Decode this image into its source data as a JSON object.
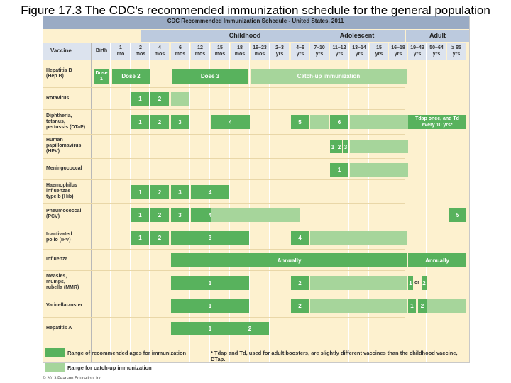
{
  "slide_title": "Figure 17.3 The CDC's recommended immunization schedule for the general population",
  "chart_title": "CDC Recommended Immunization Schedule - United States, 2011",
  "groups": {
    "childhood": "Childhood",
    "adolescent": "Adolescent",
    "adult": "Adult"
  },
  "vaccine_header": "Vaccine",
  "columns": [
    {
      "top": "Birth",
      "bottom": ""
    },
    {
      "top": "1",
      "bottom": "mo"
    },
    {
      "top": "2",
      "bottom": "mos"
    },
    {
      "top": "4",
      "bottom": "mos"
    },
    {
      "top": "6",
      "bottom": "mos"
    },
    {
      "top": "12",
      "bottom": "mos"
    },
    {
      "top": "15",
      "bottom": "mos"
    },
    {
      "top": "18",
      "bottom": "mos"
    },
    {
      "top": "19–23",
      "bottom": "mos"
    },
    {
      "top": "2–3",
      "bottom": "yrs"
    },
    {
      "top": "4–6",
      "bottom": "yrs"
    },
    {
      "top": "7–10",
      "bottom": "yrs"
    },
    {
      "top": "11–12",
      "bottom": "yrs"
    },
    {
      "top": "13–14",
      "bottom": "yrs"
    },
    {
      "top": "15",
      "bottom": "yrs"
    },
    {
      "top": "16–18",
      "bottom": "yrs"
    },
    {
      "top": "19–49",
      "bottom": "yrs"
    },
    {
      "top": "50–64",
      "bottom": "yrs"
    },
    {
      "top": "≥ 65",
      "bottom": "yrs"
    }
  ],
  "vaccines": [
    "Hepatitis B\n(Hep B)",
    "Rotavirus",
    "Diphtheria,\ntetanus,\npertussis (DTaP)",
    "Human\npapillomavirus\n(HPV)",
    "Meningococcal",
    "Haemophilus\ninfluenzae\ntype b (Hib)",
    "Pneumococcal\n(PCV)",
    "Inactivated\npolio (IPV)",
    "Influenza",
    "Measles,\nmumps,\nrubella (MMR)",
    "Varicella-zoster",
    "Hepatitis A"
  ],
  "bar_labels": {
    "hepb": [
      "Dose 1",
      "Dose 2",
      "Dose 3",
      "Catch-up immunization"
    ],
    "rota": [
      "1",
      "2"
    ],
    "dtap": [
      "1",
      "2",
      "3",
      "4",
      "5",
      "6",
      "Tdap once, and Td every 10 yrs*"
    ],
    "hpv": [
      "1",
      "2",
      "3"
    ],
    "mening": [
      "1"
    ],
    "hib": [
      "1",
      "2",
      "3",
      "4"
    ],
    "pcv": [
      "1",
      "2",
      "3",
      "4",
      "5"
    ],
    "ipv": [
      "1",
      "2",
      "3",
      "4"
    ],
    "flu": [
      "Annually",
      "Annually"
    ],
    "mmr": [
      "1",
      "2",
      "1",
      "or",
      "2"
    ],
    "var": [
      "1",
      "2",
      "1",
      "2"
    ],
    "hepa": [
      "1",
      "2"
    ]
  },
  "legend": {
    "recommended": "Range of recommended ages for immunization",
    "catchup": "Range for catch-up immunization",
    "footnote": "* Tdap and Td, used for adult boosters, are slightly different vaccines than the childhood vaccine, DTap."
  },
  "colors": {
    "recommended": "#58b25d",
    "catchup": "#a6d59b",
    "background": "#fdf1cf"
  },
  "copyright": "© 2013 Pearson Education, Inc."
}
